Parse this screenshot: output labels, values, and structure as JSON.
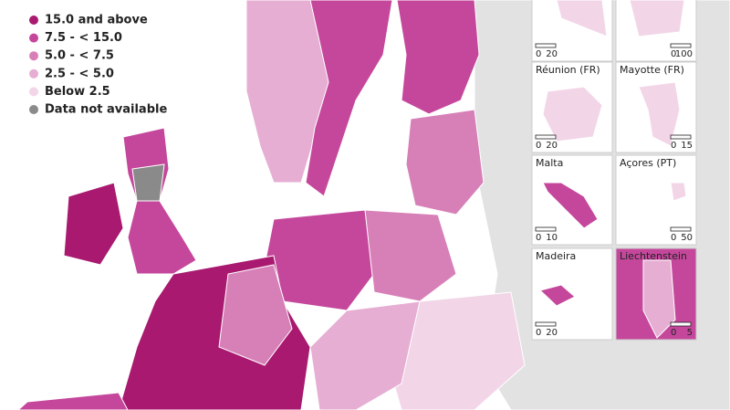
{
  "legend": {
    "items": [
      {
        "label": "15.0 and above",
        "color": "#a8196f"
      },
      {
        "label": "7.5 - < 15.0",
        "color": "#c5479c"
      },
      {
        "label": "5.0 - < 7.5",
        "color": "#d780b8"
      },
      {
        "label": "2.5 - < 5.0",
        "color": "#e6aed3"
      },
      {
        "label": "Below 2.5",
        "color": "#f2d6e8"
      },
      {
        "label": "Data not available",
        "color": "#8a8a8a"
      }
    ]
  },
  "insets": [
    {
      "scale": [
        "0",
        "20"
      ]
    },
    {
      "scale": [
        "0",
        "100"
      ]
    },
    {
      "title": "Réunion (FR)",
      "scale": [
        "0",
        "20"
      ]
    },
    {
      "title": "Mayotte (FR)",
      "scale": [
        "0",
        "15"
      ]
    },
    {
      "title": "Malta",
      "scale": [
        "0",
        "10"
      ]
    },
    {
      "title": "Açores (PT)",
      "scale": [
        "0",
        "50"
      ]
    },
    {
      "title": "Madeira",
      "scale": [
        "0",
        "20"
      ]
    },
    {
      "title": "Liechtenstein",
      "scale": [
        "0",
        "5"
      ]
    }
  ]
}
